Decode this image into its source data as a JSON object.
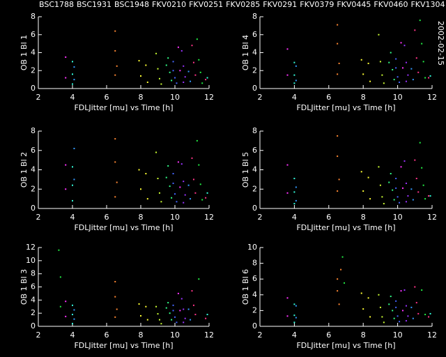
{
  "chart_data": [
    {
      "type": "scatter",
      "ylabel": "OB 1 Bl 1",
      "xlabel": "FDLJitter [mu] vs Time [h]",
      "xlim": [
        2,
        12
      ],
      "xticks": [
        2,
        4,
        6,
        8,
        10,
        12
      ],
      "ylim": [
        0,
        8
      ],
      "yticks": [
        0,
        2,
        4,
        6,
        8
      ],
      "series": [
        {
          "name": "BSC1788",
          "color": "#22ee44",
          "x": [
            11.3,
            11.4,
            11.5,
            11.6
          ],
          "values": [
            5.5,
            3.2,
            1.8,
            0.6
          ]
        },
        {
          "name": "BSC1931",
          "color": "#3399ff",
          "x": [
            4.1,
            4.1,
            10.8,
            10.9
          ],
          "values": [
            2.4,
            1.0,
            1.9,
            0.8
          ]
        },
        {
          "name": "BSC1948",
          "color": "#33ffdd",
          "x": [
            4.0,
            4.0,
            4.0,
            11.9
          ],
          "values": [
            3.0,
            1.6,
            0.5,
            1.2
          ]
        },
        {
          "name": "FKV0210",
          "color": "#ff33ff",
          "x": [
            3.6,
            3.6,
            10.2,
            10.3
          ],
          "values": [
            3.5,
            1.2,
            4.6,
            2.0
          ]
        },
        {
          "name": "FKV0251",
          "color": "#ffff33",
          "x": [
            7.9,
            8.0,
            8.3,
            8.4
          ],
          "values": [
            3.1,
            1.4,
            2.6,
            0.7
          ]
        },
        {
          "name": "FKV0285",
          "color": "#ff8833",
          "x": [
            6.5,
            6.5,
            6.6,
            6.5
          ],
          "values": [
            6.4,
            4.2,
            2.5,
            1.5
          ]
        },
        {
          "name": "FKV0291",
          "color": "#ccff33",
          "x": [
            8.9,
            9.0,
            9.1,
            9.2
          ],
          "values": [
            3.9,
            2.2,
            1.1,
            0.5
          ]
        },
        {
          "name": "FKV0379",
          "color": "#33ff88",
          "x": [
            9.6,
            9.7,
            9.8,
            9.5
          ],
          "values": [
            3.4,
            1.8,
            0.9,
            2.6
          ]
        },
        {
          "name": "FKV0445",
          "color": "#4466ff",
          "x": [
            9.9,
            10.0,
            10.1,
            9.9
          ],
          "values": [
            2.0,
            1.2,
            0.6,
            3.0
          ]
        },
        {
          "name": "FKV0460",
          "color": "#9933ff",
          "x": [
            10.4,
            10.5,
            10.6,
            10.5
          ],
          "values": [
            4.2,
            2.5,
            1.3,
            0.7
          ]
        },
        {
          "name": "FKV1304",
          "color": "#ff3388",
          "x": [
            11.0,
            11.1,
            11.2,
            11.8
          ],
          "values": [
            4.8,
            2.9,
            1.5,
            1.0
          ]
        }
      ]
    },
    {
      "type": "scatter",
      "ylabel": "OB 1 Bl 4",
      "xlabel": "FDLJitter [mu] vs Time [h]",
      "annotation": "2002-02-15",
      "xlim": [
        2,
        12
      ],
      "xticks": [
        2,
        4,
        6,
        8,
        10,
        12
      ],
      "ylim": [
        0,
        8
      ],
      "yticks": [
        0,
        2,
        4,
        6,
        8
      ],
      "series": [
        {
          "color": "#22ee44",
          "x": [
            11.3,
            11.4,
            11.5,
            11.6
          ],
          "values": [
            7.6,
            5.0,
            3.0,
            1.2
          ]
        },
        {
          "color": "#3399ff",
          "x": [
            4.1,
            4.1,
            10.8,
            10.9
          ],
          "values": [
            2.5,
            0.9,
            2.2,
            1.0
          ]
        },
        {
          "color": "#33ffdd",
          "x": [
            4.0,
            4.0,
            4.0,
            11.9
          ],
          "values": [
            2.9,
            1.5,
            0.6,
            1.4
          ]
        },
        {
          "color": "#ff33ff",
          "x": [
            3.6,
            3.6,
            10.2,
            10.3
          ],
          "values": [
            4.4,
            1.5,
            5.1,
            2.3
          ]
        },
        {
          "color": "#ffff33",
          "x": [
            7.9,
            8.0,
            8.3,
            8.4
          ],
          "values": [
            3.2,
            1.6,
            2.8,
            0.8
          ]
        },
        {
          "color": "#ff8833",
          "x": [
            6.5,
            6.5,
            6.6,
            6.5
          ],
          "values": [
            7.1,
            5.0,
            2.8,
            1.6
          ]
        },
        {
          "color": "#ccff33",
          "x": [
            8.9,
            9.0,
            9.1,
            9.2
          ],
          "values": [
            6.0,
            3.0,
            1.5,
            0.6
          ]
        },
        {
          "color": "#33ff88",
          "x": [
            9.6,
            9.7,
            9.8,
            9.5
          ],
          "values": [
            4.0,
            2.1,
            1.0,
            2.9
          ]
        },
        {
          "color": "#4466ff",
          "x": [
            9.9,
            10.0,
            10.1,
            9.9
          ],
          "values": [
            2.3,
            1.3,
            0.7,
            3.3
          ]
        },
        {
          "color": "#9933ff",
          "x": [
            10.4,
            10.5,
            10.6,
            10.5
          ],
          "values": [
            4.8,
            2.9,
            1.5,
            0.8
          ]
        },
        {
          "color": "#ff3388",
          "x": [
            11.0,
            11.1,
            11.2,
            11.8
          ],
          "values": [
            6.5,
            3.4,
            1.8,
            1.2
          ]
        }
      ]
    },
    {
      "type": "scatter",
      "ylabel": "OB 1 Bl 2",
      "xlabel": "FDLJitter [mu] vs Time [h]",
      "xlim": [
        2,
        12
      ],
      "xticks": [
        2,
        4,
        6,
        8,
        10,
        12
      ],
      "ylim": [
        0,
        8
      ],
      "yticks": [
        0,
        2,
        4,
        6,
        8
      ],
      "series": [
        {
          "color": "#22ee44",
          "x": [
            11.3,
            11.4,
            11.5,
            11.6
          ],
          "values": [
            7.0,
            4.5,
            2.5,
            0.9
          ]
        },
        {
          "color": "#3399ff",
          "x": [
            4.1,
            4.1,
            10.8,
            10.9
          ],
          "values": [
            6.2,
            3.0,
            2.4,
            1.0
          ]
        },
        {
          "color": "#33ffdd",
          "x": [
            4.0,
            4.0,
            4.0,
            11.9
          ],
          "values": [
            4.3,
            2.4,
            0.8,
            1.6
          ]
        },
        {
          "color": "#ff33ff",
          "x": [
            3.6,
            3.6,
            10.2,
            10.3
          ],
          "values": [
            4.5,
            2.0,
            4.8,
            2.2
          ]
        },
        {
          "color": "#ffff33",
          "x": [
            7.9,
            8.0,
            8.3,
            8.4
          ],
          "values": [
            4.0,
            2.0,
            3.6,
            1.0
          ]
        },
        {
          "color": "#ff8833",
          "x": [
            6.5,
            6.5,
            6.6,
            6.5
          ],
          "values": [
            7.2,
            4.8,
            2.7,
            1.2
          ]
        },
        {
          "color": "#ccff33",
          "x": [
            8.9,
            9.0,
            9.1,
            9.2
          ],
          "values": [
            5.8,
            3.1,
            1.6,
            0.7
          ]
        },
        {
          "color": "#33ff88",
          "x": [
            9.6,
            9.7,
            9.8,
            9.5
          ],
          "values": [
            4.4,
            2.3,
            1.1,
            3.2
          ]
        },
        {
          "color": "#4466ff",
          "x": [
            9.9,
            10.0,
            10.1,
            9.9
          ],
          "values": [
            2.6,
            1.5,
            0.7,
            3.6
          ]
        },
        {
          "color": "#9933ff",
          "x": [
            10.4,
            10.5,
            10.6,
            10.5
          ],
          "values": [
            4.6,
            2.8,
            1.4,
            0.6
          ]
        },
        {
          "color": "#ff3388",
          "x": [
            11.0,
            11.1,
            11.2,
            11.8
          ],
          "values": [
            5.2,
            3.0,
            1.6,
            1.1
          ]
        }
      ]
    },
    {
      "type": "scatter",
      "ylabel": "OB 1 Bl 5",
      "xlabel": "FDLJitter [mu] vs Time [h]",
      "xlim": [
        2,
        12
      ],
      "xticks": [
        2,
        4,
        6,
        8,
        10,
        12
      ],
      "ylim": [
        0,
        8
      ],
      "yticks": [
        0,
        2,
        4,
        6,
        8
      ],
      "series": [
        {
          "color": "#22ee44",
          "x": [
            11.3,
            11.4,
            11.5,
            11.6
          ],
          "values": [
            6.8,
            4.2,
            2.4,
            1.0
          ]
        },
        {
          "color": "#3399ff",
          "x": [
            4.1,
            4.1,
            10.8,
            10.9
          ],
          "values": [
            2.2,
            0.8,
            2.0,
            0.9
          ]
        },
        {
          "color": "#33ffdd",
          "x": [
            4.0,
            4.0,
            4.0,
            11.9
          ],
          "values": [
            3.1,
            1.7,
            0.5,
            1.3
          ]
        },
        {
          "color": "#ff33ff",
          "x": [
            3.6,
            3.6,
            10.2,
            10.3
          ],
          "values": [
            4.5,
            1.6,
            4.3,
            2.1
          ]
        },
        {
          "color": "#ffff33",
          "x": [
            7.9,
            8.0,
            8.3,
            8.4
          ],
          "values": [
            3.8,
            1.8,
            3.2,
            1.0
          ]
        },
        {
          "color": "#ff8833",
          "x": [
            6.5,
            6.5,
            6.6,
            6.5
          ],
          "values": [
            7.5,
            5.4,
            3.0,
            1.8
          ]
        },
        {
          "color": "#ccff33",
          "x": [
            8.9,
            9.0,
            9.1,
            9.2
          ],
          "values": [
            4.3,
            2.4,
            1.2,
            0.5
          ]
        },
        {
          "color": "#33ff88",
          "x": [
            9.6,
            9.7,
            9.8,
            9.5
          ],
          "values": [
            3.6,
            1.9,
            0.9,
            2.7
          ]
        },
        {
          "color": "#4466ff",
          "x": [
            9.9,
            10.0,
            10.1,
            9.9
          ],
          "values": [
            2.1,
            1.2,
            0.6,
            3.1
          ]
        },
        {
          "color": "#9933ff",
          "x": [
            10.4,
            10.5,
            10.6,
            10.5
          ],
          "values": [
            4.9,
            2.6,
            1.3,
            0.7
          ]
        },
        {
          "color": "#ff3388",
          "x": [
            11.0,
            11.1,
            11.2,
            11.8
          ],
          "values": [
            5.0,
            3.1,
            1.7,
            1.3
          ]
        }
      ]
    },
    {
      "type": "scatter",
      "ylabel": "OB 1 Bl 3",
      "xlabel": "FDLJitter [mu] vs Time [h]",
      "xlim": [
        2,
        12
      ],
      "xticks": [
        2,
        4,
        6,
        8,
        10,
        12
      ],
      "ylim": [
        0,
        12
      ],
      "yticks": [
        0,
        2,
        4,
        6,
        8,
        10,
        12
      ],
      "series": [
        {
          "color": "#22ee44",
          "x": [
            3.2,
            3.3,
            3.3,
            11.4
          ],
          "values": [
            11.6,
            7.5,
            3.0,
            7.2
          ]
        },
        {
          "color": "#3399ff",
          "x": [
            4.1,
            4.1,
            10.8,
            10.9
          ],
          "values": [
            2.5,
            1.1,
            2.6,
            1.0
          ]
        },
        {
          "color": "#33ffdd",
          "x": [
            4.0,
            4.0,
            4.0,
            11.9
          ],
          "values": [
            3.2,
            1.8,
            0.4,
            1.8
          ]
        },
        {
          "color": "#ff33ff",
          "x": [
            3.6,
            3.6,
            10.2,
            10.3
          ],
          "values": [
            3.8,
            1.5,
            5.0,
            2.4
          ]
        },
        {
          "color": "#ffff33",
          "x": [
            7.9,
            8.0,
            8.3,
            8.4
          ],
          "values": [
            3.4,
            1.6,
            3.0,
            1.0
          ]
        },
        {
          "color": "#ff8833",
          "x": [
            6.5,
            6.5,
            6.6,
            6.5
          ],
          "values": [
            6.8,
            4.5,
            2.6,
            1.4
          ]
        },
        {
          "color": "#ccff33",
          "x": [
            8.9,
            9.0,
            9.1,
            9.2
          ],
          "values": [
            3.0,
            1.9,
            1.0,
            0.4
          ]
        },
        {
          "color": "#33ff88",
          "x": [
            9.6,
            9.7,
            9.8,
            9.5
          ],
          "values": [
            3.6,
            2.0,
            1.0,
            2.8
          ]
        },
        {
          "color": "#4466ff",
          "x": [
            9.9,
            10.0,
            10.1,
            9.9
          ],
          "values": [
            2.4,
            1.4,
            0.6,
            3.2
          ]
        },
        {
          "color": "#9933ff",
          "x": [
            10.4,
            10.5,
            10.6,
            10.5
          ],
          "values": [
            4.2,
            2.6,
            1.2,
            0.6
          ]
        },
        {
          "color": "#ff3388",
          "x": [
            11.0,
            11.1,
            11.2,
            11.8
          ],
          "values": [
            5.4,
            3.2,
            1.8,
            1.2
          ]
        }
      ]
    },
    {
      "type": "scatter",
      "ylabel": "OB 1 Bl 6",
      "xlabel": "FDLJitter [mu] vs Time [h]",
      "xlim": [
        2,
        12
      ],
      "xticks": [
        2,
        4,
        6,
        8,
        10,
        12
      ],
      "ylim": [
        0,
        10
      ],
      "yticks": [
        0,
        2,
        4,
        6,
        8,
        10
      ],
      "series": [
        {
          "color": "#22ee44",
          "x": [
            6.8,
            6.9,
            11.4,
            11.6
          ],
          "values": [
            8.8,
            5.5,
            4.6,
            1.5
          ]
        },
        {
          "color": "#3399ff",
          "x": [
            4.1,
            4.1,
            10.8,
            10.9
          ],
          "values": [
            2.6,
            1.1,
            2.4,
            1.0
          ]
        },
        {
          "color": "#33ffdd",
          "x": [
            4.0,
            4.0,
            4.0,
            11.9
          ],
          "values": [
            2.8,
            1.4,
            0.5,
            1.6
          ]
        },
        {
          "color": "#ff33ff",
          "x": [
            3.6,
            3.6,
            10.2,
            10.3
          ],
          "values": [
            3.6,
            1.3,
            4.5,
            2.0
          ]
        },
        {
          "color": "#ffff33",
          "x": [
            7.9,
            8.0,
            8.3,
            8.4
          ],
          "values": [
            4.2,
            2.2,
            3.6,
            1.2
          ]
        },
        {
          "color": "#ff8833",
          "x": [
            6.5,
            6.5,
            6.6,
            6.7
          ],
          "values": [
            6.0,
            4.5,
            2.8,
            7.2
          ]
        },
        {
          "color": "#ccff33",
          "x": [
            8.9,
            9.0,
            9.1,
            9.2
          ],
          "values": [
            4.0,
            2.4,
            1.2,
            0.5
          ]
        },
        {
          "color": "#33ff88",
          "x": [
            9.6,
            9.7,
            9.8,
            9.5
          ],
          "values": [
            3.8,
            2.0,
            1.0,
            2.8
          ]
        },
        {
          "color": "#4466ff",
          "x": [
            9.9,
            10.0,
            10.1,
            9.9
          ],
          "values": [
            2.4,
            1.3,
            0.6,
            3.2
          ]
        },
        {
          "color": "#9933ff",
          "x": [
            10.4,
            10.5,
            10.6,
            10.5
          ],
          "values": [
            4.6,
            2.6,
            1.3,
            0.7
          ]
        },
        {
          "color": "#ff3388",
          "x": [
            11.0,
            11.1,
            11.2,
            11.8
          ],
          "values": [
            5.0,
            3.0,
            1.6,
            1.2
          ]
        }
      ]
    }
  ]
}
